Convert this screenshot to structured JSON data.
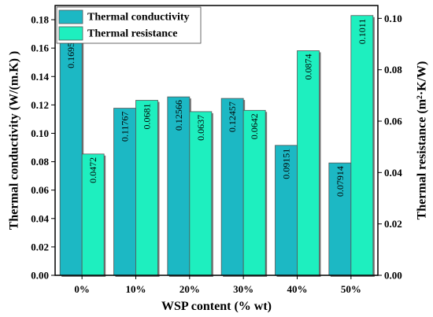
{
  "chart_data": {
    "type": "bar",
    "categories": [
      "0%",
      "10%",
      "20%",
      "30%",
      "40%",
      "50%"
    ],
    "xlabel": "WSP content (% wt)",
    "series": [
      {
        "name": "Thermal conductivity",
        "axis": "left",
        "values": [
          0.16957,
          0.11767,
          0.12566,
          0.12457,
          0.09151,
          0.07914
        ],
        "value_labels": [
          "0.16957",
          "0.11767",
          "0.12566",
          "0.12457",
          "0.09151",
          "0.07914"
        ],
        "color": "#1CB8C4"
      },
      {
        "name": "Thermal resistance",
        "axis": "right",
        "values": [
          0.0472,
          0.0681,
          0.0637,
          0.0642,
          0.0874,
          0.1011
        ],
        "value_labels": [
          "0.0472",
          "0.0681",
          "0.0637",
          "0.0642",
          "0.0874",
          "0.1011"
        ],
        "color": "#1EEFBF"
      }
    ],
    "y_left": {
      "label": "Thermal conductivity (W/(m.K) )",
      "ylim": [
        0,
        0.19
      ],
      "ticks": [
        "0.00",
        "0.02",
        "0.04",
        "0.06",
        "0.08",
        "0.10",
        "0.12",
        "0.14",
        "0.16",
        "0.18"
      ]
    },
    "y_right": {
      "label": "Thermal resistance (m²·K/W)",
      "ylim": [
        0,
        0.105
      ],
      "ticks": [
        "0.00",
        "0.02",
        "0.04",
        "0.06",
        "0.08",
        "0.10"
      ]
    },
    "legend": {
      "position": "top-left",
      "entries": [
        "Thermal conductivity",
        "Thermal resistance"
      ]
    },
    "grid": false
  }
}
